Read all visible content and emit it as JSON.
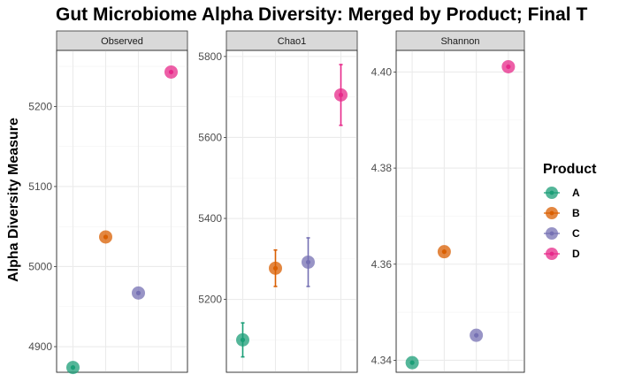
{
  "chart_data": {
    "type": "scatter",
    "title": "Gut Microbiome Alpha Diversity: Merged by Product; Final T",
    "ylabel": "Alpha Diversity Measure",
    "xlabel": "",
    "legend": {
      "title": "Product",
      "placement": "right",
      "entries": [
        {
          "label": "A",
          "color": "#1b9e77"
        },
        {
          "label": "B",
          "color": "#d95f02"
        },
        {
          "label": "C",
          "color": "#7570b3"
        },
        {
          "label": "D",
          "color": "#e7298a"
        }
      ]
    },
    "categories": [
      "A",
      "B",
      "C",
      "D"
    ],
    "facets": [
      {
        "name": "Observed",
        "ylim": [
          4868,
          5270
        ],
        "ticks": [
          4900,
          5000,
          5100,
          5200
        ],
        "tick_labels": [
          "4900",
          "5000",
          "5100",
          "5200"
        ],
        "values": [
          4874,
          5037,
          4967,
          5243
        ],
        "errors": [
          null,
          null,
          null,
          null
        ]
      },
      {
        "name": "Chao1",
        "ylim": [
          5020,
          5815
        ],
        "ticks": [
          5200,
          5400,
          5600,
          5800
        ],
        "tick_labels": [
          "5200",
          "5400",
          "5600",
          "5800"
        ],
        "values": [
          5100,
          5277,
          5292,
          5705
        ],
        "errors": [
          [
            5058,
            5142
          ],
          [
            5232,
            5322
          ],
          [
            5232,
            5352
          ],
          [
            5630,
            5780
          ]
        ]
      },
      {
        "name": "Shannon",
        "ylim": [
          4.3375,
          4.4045
        ],
        "ticks": [
          4.34,
          4.36,
          4.38,
          4.4
        ],
        "tick_labels": [
          "4.34",
          "4.36",
          "4.38",
          "4.40"
        ],
        "values": [
          4.3395,
          4.3626,
          4.3452,
          4.4011
        ],
        "errors": [
          null,
          null,
          null,
          null
        ]
      }
    ],
    "grid": true
  }
}
